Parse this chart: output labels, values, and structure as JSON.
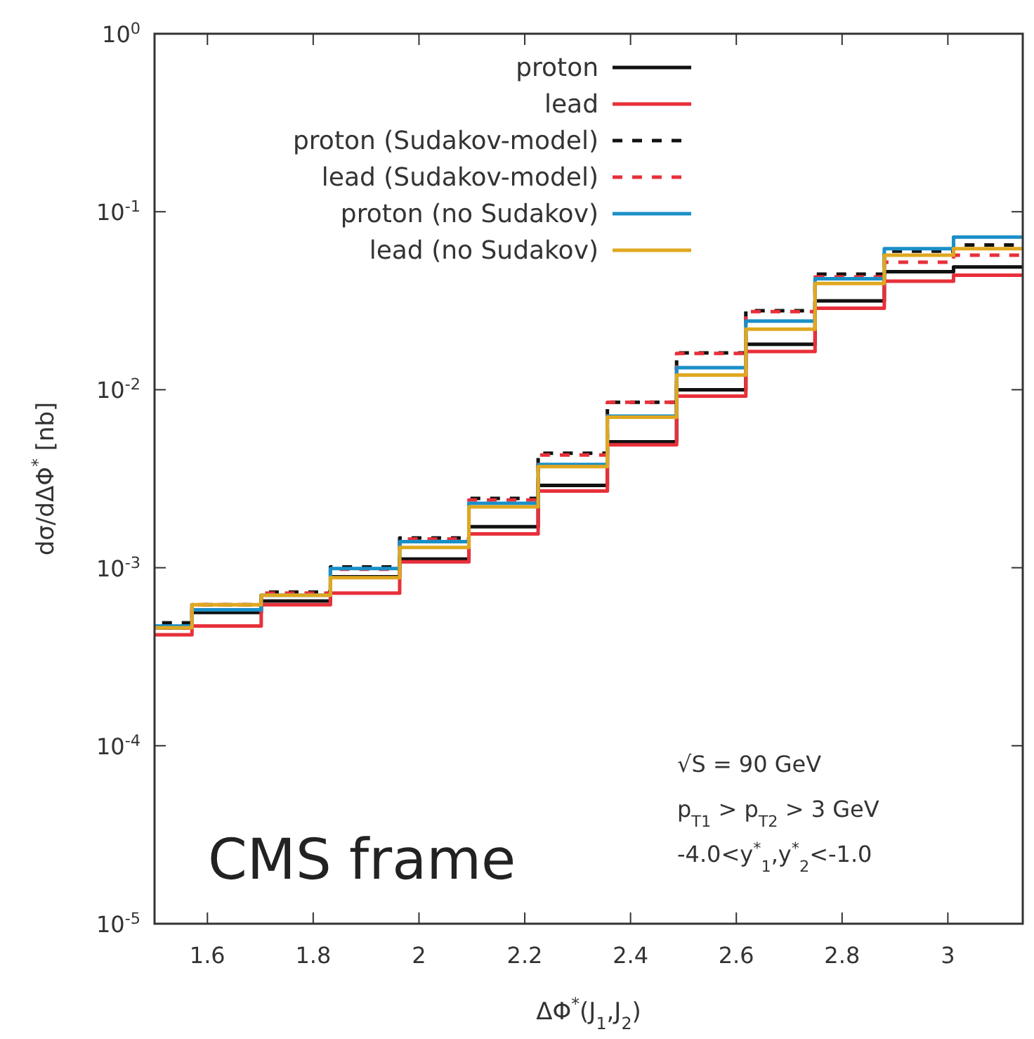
{
  "chart_data": {
    "type": "histogram",
    "xlabel": "ΔΦ$^{*}$(J$_{1}$,J$_{2}$)",
    "ylabel": "dσ/dΔΦ$^{*}$ [nb]",
    "bins": [
      1.4399,
      1.5708,
      1.7017,
      1.8326,
      1.9635,
      2.0944,
      2.2253,
      2.3562,
      2.4871,
      2.618,
      2.7489,
      2.8798,
      3.0107,
      3.1416
    ],
    "series": [
      {
        "name": "proton",
        "color": "#111111",
        "line_style": "solid",
        "values": [
          0.00046,
          0.00056,
          0.00065,
          0.00089,
          0.00112,
          0.0017,
          0.0029,
          0.0051,
          0.01,
          0.018,
          0.0316,
          0.046,
          0.049
        ]
      },
      {
        "name": "lead",
        "color": "#e8303a",
        "line_style": "solid",
        "values": [
          0.00042,
          0.00047,
          0.00062,
          0.00072,
          0.00108,
          0.00155,
          0.0027,
          0.0049,
          0.0092,
          0.0164,
          0.0287,
          0.0407,
          0.044
        ]
      },
      {
        "name": "proton (Sudakov-model)",
        "color": "#111111",
        "line_style": "dashed",
        "values": [
          0.00049,
          0.00062,
          0.00073,
          0.00101,
          0.00147,
          0.00245,
          0.0044,
          0.0085,
          0.0161,
          0.0278,
          0.0446,
          0.06,
          0.065
        ]
      },
      {
        "name": "lead (Sudakov-model)",
        "color": "#e8303a",
        "line_style": "dashed",
        "values": [
          0.00046,
          0.00062,
          0.00072,
          0.00098,
          0.00145,
          0.0024,
          0.0043,
          0.0085,
          0.016,
          0.0275,
          0.043,
          0.052,
          0.057
        ]
      },
      {
        "name": "proton (no Sudakov)",
        "color": "#1a8fc8",
        "line_style": "solid",
        "values": [
          0.00047,
          0.00058,
          0.0007,
          0.00099,
          0.0014,
          0.0023,
          0.0038,
          0.0071,
          0.0133,
          0.0243,
          0.042,
          0.062,
          0.072
        ]
      },
      {
        "name": "lead (no Sudakov)",
        "color": "#e0a820",
        "line_style": "solid",
        "values": [
          0.00046,
          0.00062,
          0.0007,
          0.00088,
          0.0013,
          0.0022,
          0.0037,
          0.007,
          0.0121,
          0.0219,
          0.0395,
          0.057,
          0.062
        ]
      }
    ],
    "xlim": [
      1.5,
      3.1416
    ],
    "xticks": [
      1.6,
      1.8,
      2,
      2.2,
      2.4,
      2.6,
      2.8,
      3
    ],
    "ylim": [
      1e-05,
      1
    ],
    "yticks": [
      {
        "value": 1e-05,
        "label": "10$^{-5}$"
      },
      {
        "value": 0.0001,
        "label": "10$^{-4}$"
      },
      {
        "value": 0.001,
        "label": "10$^{-3}$"
      },
      {
        "value": 0.01,
        "label": "10$^{-2}$"
      },
      {
        "value": 0.1,
        "label": "10$^{-1}$"
      },
      {
        "value": 1,
        "label": "10$^{0}$"
      }
    ],
    "log": true,
    "grid": false,
    "legend": "top",
    "annotations": [
      "√S = 90 GeV",
      "p$_{T1}$ > p$_{T2}$ > 3 GeV",
      "-4.0<y$^{*}$$_{1}$,y$^{*}$$_{2}$<-1.0",
      "CMS frame"
    ]
  }
}
